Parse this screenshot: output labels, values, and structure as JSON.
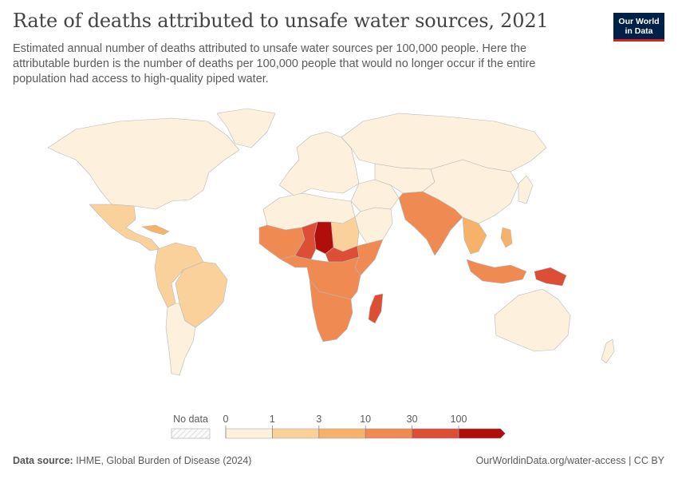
{
  "header": {
    "title": "Rate of deaths attributed to unsafe water sources, 2021",
    "subtitle": "Estimated annual number of deaths attributed to unsafe water sources per 100,000 people. Here the attributable burden is the number of deaths per 100,000 people that would no longer occur if the entire population had access to high-quality piped water."
  },
  "logo": {
    "line1": "Our World",
    "line2": "in Data",
    "bg_color": "#002147",
    "accent_color": "#ce261e"
  },
  "legend": {
    "no_data_label": "No data",
    "ticks": [
      "0",
      "1",
      "3",
      "10",
      "30",
      "100"
    ],
    "bin_colors": [
      "#fdf0dc",
      "#fad19b",
      "#f6b26b",
      "#ef8a53",
      "#dd4e37",
      "#b10d0b"
    ]
  },
  "footer": {
    "source_label": "Data source:",
    "source_text": "IHME, Global Burden of Disease (2024)",
    "url_text": "OurWorldinData.org/water-access | CC BY"
  },
  "map_regions": [
    {
      "name": "north-america",
      "bin": 0
    },
    {
      "name": "greenland",
      "bin": 0
    },
    {
      "name": "mexico-central-america",
      "bin": 1
    },
    {
      "name": "caribbean",
      "bin": 2
    },
    {
      "name": "south-america-north",
      "bin": 1
    },
    {
      "name": "brazil",
      "bin": 1
    },
    {
      "name": "south-america-south",
      "bin": 0
    },
    {
      "name": "europe",
      "bin": 0
    },
    {
      "name": "russia",
      "bin": 0
    },
    {
      "name": "north-africa",
      "bin": 0
    },
    {
      "name": "sudan",
      "bin": 1
    },
    {
      "name": "west-africa",
      "bin": 3
    },
    {
      "name": "chad",
      "bin": 5
    },
    {
      "name": "niger-region",
      "bin": 4
    },
    {
      "name": "central-africa",
      "bin": 3
    },
    {
      "name": "south-sudan-region",
      "bin": 4
    },
    {
      "name": "somalia",
      "bin": 3
    },
    {
      "name": "southern-africa",
      "bin": 3
    },
    {
      "name": "madagascar",
      "bin": 4
    },
    {
      "name": "middle-east",
      "bin": 0
    },
    {
      "name": "arabian-peninsula",
      "bin": 0
    },
    {
      "name": "central-asia",
      "bin": 0
    },
    {
      "name": "south-asia",
      "bin": 3
    },
    {
      "name": "china",
      "bin": 0
    },
    {
      "name": "southeast-asia",
      "bin": 2
    },
    {
      "name": "philippines",
      "bin": 2
    },
    {
      "name": "indonesia",
      "bin": 3
    },
    {
      "name": "papua-new-guinea",
      "bin": 4
    },
    {
      "name": "japan",
      "bin": 0
    },
    {
      "name": "australia",
      "bin": 0
    },
    {
      "name": "new-zealand",
      "bin": 0
    }
  ]
}
